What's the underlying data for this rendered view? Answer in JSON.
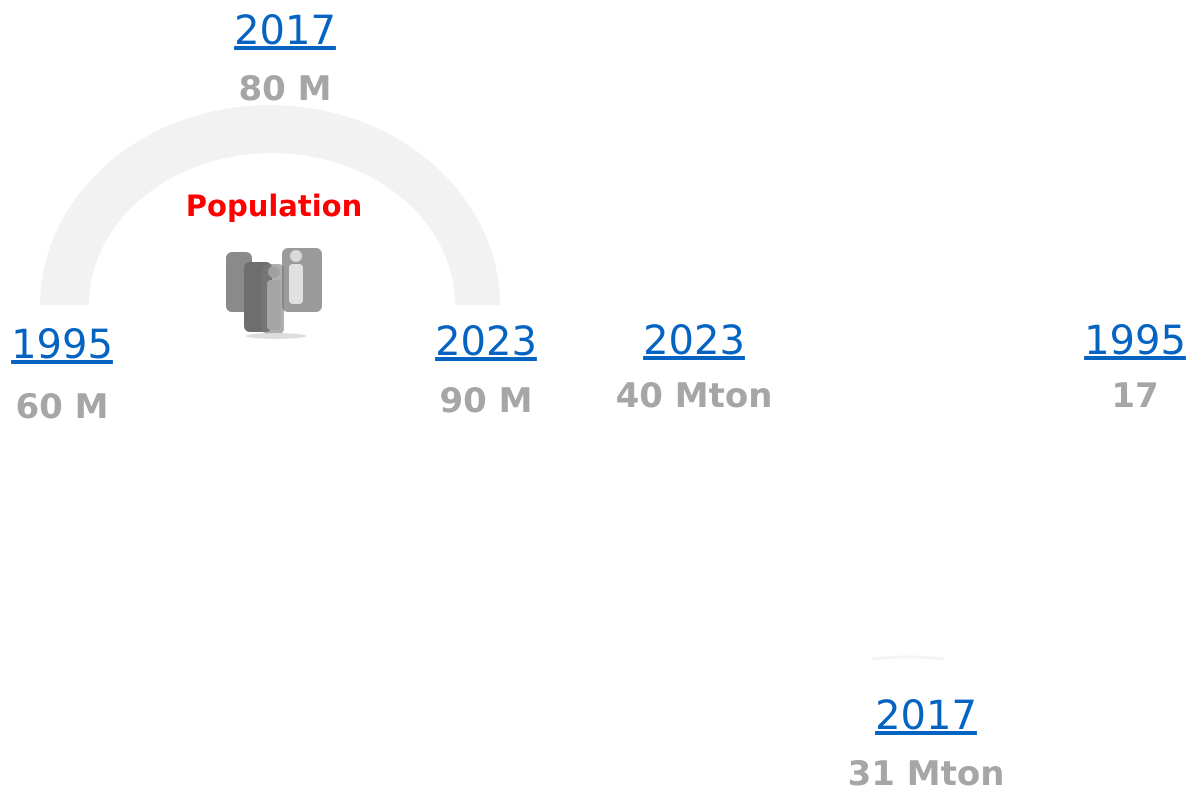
{
  "groups": [
    {
      "title": "Population",
      "points": [
        {
          "year": "1995",
          "value": "60 M"
        },
        {
          "year": "2017",
          "value": "80 M"
        },
        {
          "year": "2023",
          "value": "90 M"
        }
      ]
    },
    {
      "points": [
        {
          "year": "2023",
          "value": "40 Mton"
        },
        {
          "year": "1995",
          "value": "17"
        },
        {
          "year": "2017",
          "value": "31 Mton"
        }
      ]
    }
  ]
}
